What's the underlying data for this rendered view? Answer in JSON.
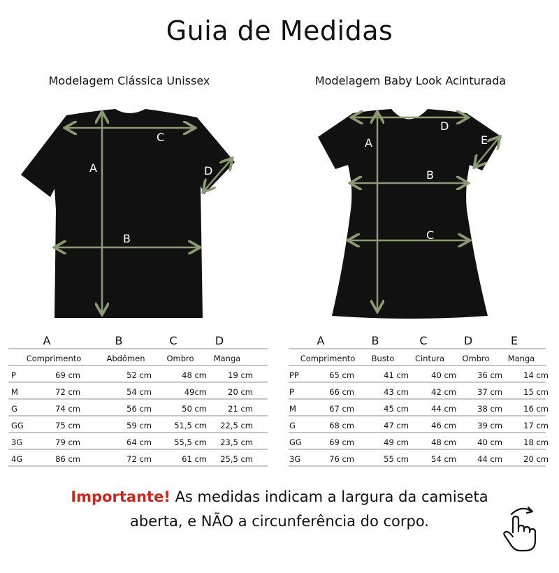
{
  "title": "Guia de Medidas",
  "colors": {
    "arrow": "#8a9a72",
    "shirt": "#111111",
    "important": "#c8281e",
    "rule": "#c9c9c0"
  },
  "classic": {
    "subtitle": "Modelagem Clássica Unissex",
    "diagram_labels": [
      "A",
      "B",
      "C",
      "D"
    ],
    "letters": [
      "A",
      "B",
      "C",
      "D"
    ],
    "headers": [
      "Comprimento",
      "Abdômen",
      "Ombro",
      "Manga"
    ],
    "rows": [
      {
        "size": "P",
        "values": [
          "69 cm",
          "52 cm",
          "48 cm",
          "19 cm"
        ]
      },
      {
        "size": "M",
        "values": [
          "72 cm",
          "54 cm",
          "49cm",
          "20 cm"
        ]
      },
      {
        "size": "G",
        "values": [
          "74 cm",
          "56 cm",
          "50 cm",
          "21 cm"
        ]
      },
      {
        "size": "GG",
        "values": [
          "75 cm",
          "59 cm",
          "51,5 cm",
          "22,5 cm"
        ]
      },
      {
        "size": "3G",
        "values": [
          "79 cm",
          "64 cm",
          "55,5 cm",
          "23,5 cm"
        ]
      },
      {
        "size": "4G",
        "values": [
          "86 cm",
          "72 cm",
          "61 cm",
          "25,5 cm"
        ]
      }
    ]
  },
  "babylook": {
    "subtitle": "Modelagem Baby Look Acinturada",
    "diagram_labels": [
      "A",
      "B",
      "C",
      "D",
      "E"
    ],
    "letters": [
      "A",
      "B",
      "C",
      "D",
      "E"
    ],
    "headers": [
      "Comprimento",
      "Busto",
      "Cintura",
      "Ombro",
      "Manga"
    ],
    "rows": [
      {
        "size": "PP",
        "values": [
          "65 cm",
          "41 cm",
          "40 cm",
          "36 cm",
          "14 cm"
        ]
      },
      {
        "size": "P",
        "values": [
          "66 cm",
          "43 cm",
          "42 cm",
          "37 cm",
          "15 cm"
        ]
      },
      {
        "size": "M",
        "values": [
          "67 cm",
          "45 cm",
          "44 cm",
          "38 cm",
          "16 cm"
        ]
      },
      {
        "size": "G",
        "values": [
          "68 cm",
          "47 cm",
          "46 cm",
          "39 cm",
          "17 cm"
        ]
      },
      {
        "size": "GG",
        "values": [
          "69 cm",
          "49 cm",
          "48 cm",
          "40 cm",
          "18 cm"
        ]
      },
      {
        "size": "3G",
        "values": [
          "76 cm",
          "55 cm",
          "54 cm",
          "44 cm",
          "20 cm"
        ]
      }
    ]
  },
  "note": {
    "important": "Importante!",
    "line1": " As medidas indicam a largura da camiseta",
    "line2": "aberta, e NÃO a circunferência do corpo."
  },
  "icons": {
    "swipe": "hand-swipe-icon"
  }
}
